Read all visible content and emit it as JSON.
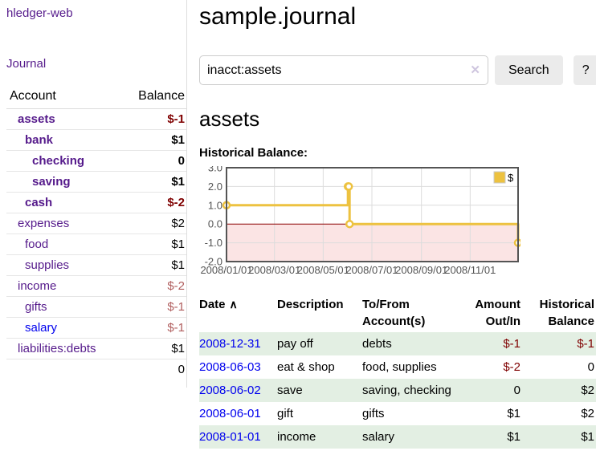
{
  "sidebar": {
    "app_title": "hledger-web",
    "journal_link": "Journal",
    "accounts_header": {
      "account": "Account",
      "balance": "Balance"
    },
    "accounts": [
      {
        "label": "assets",
        "depth": 0,
        "bold": true,
        "link_color": "purple",
        "balance": "$-1",
        "balance_style": "neg-strong"
      },
      {
        "label": "bank",
        "depth": 1,
        "bold": true,
        "link_color": "purple",
        "balance": "$1",
        "balance_style": "plain"
      },
      {
        "label": "checking",
        "depth": 2,
        "bold": true,
        "link_color": "purple",
        "balance": "0",
        "balance_style": "plain"
      },
      {
        "label": "saving",
        "depth": 2,
        "bold": true,
        "link_color": "purple",
        "balance": "$1",
        "balance_style": "plain"
      },
      {
        "label": "cash",
        "depth": 1,
        "bold": true,
        "link_color": "purple",
        "balance": "$-2",
        "balance_style": "neg-strong"
      },
      {
        "label": "expenses",
        "depth": 0,
        "bold": false,
        "link_color": "purple",
        "balance": "$2",
        "balance_style": "plain"
      },
      {
        "label": "food",
        "depth": 1,
        "bold": false,
        "link_color": "purple",
        "balance": "$1",
        "balance_style": "plain"
      },
      {
        "label": "supplies",
        "depth": 1,
        "bold": false,
        "link_color": "purple",
        "balance": "$1",
        "balance_style": "plain"
      },
      {
        "label": "income",
        "depth": 0,
        "bold": false,
        "link_color": "purple",
        "balance": "$-2",
        "balance_style": "neg-soft"
      },
      {
        "label": "gifts",
        "depth": 1,
        "bold": false,
        "link_color": "purple",
        "balance": "$-1",
        "balance_style": "neg-soft"
      },
      {
        "label": "salary",
        "depth": 1,
        "bold": false,
        "link_color": "blue",
        "balance": "$-1",
        "balance_style": "neg-soft"
      },
      {
        "label": "liabilities:debts",
        "depth": 0,
        "bold": false,
        "link_color": "purple",
        "balance": "$1",
        "balance_style": "plain"
      }
    ],
    "total": "0"
  },
  "main": {
    "title": "sample.journal",
    "search": {
      "value": "inacct:assets",
      "clear_icon": "✕",
      "button_label": "Search",
      "help_label": "?"
    },
    "account_heading": "assets",
    "chart_label": "Historical Balance:"
  },
  "register": {
    "headers": {
      "date": "Date",
      "sort_icon": "∧",
      "description": "Description",
      "accounts_line1": "To/From",
      "accounts_line2": "Account(s)",
      "amount_line1": "Amount",
      "amount_line2": "Out/In",
      "balance_line1": "Historical",
      "balance_line2": "Balance"
    },
    "rows": [
      {
        "date": "2008-12-31",
        "description": "pay off",
        "accounts": "debts",
        "amount": "$-1",
        "amount_negative": true,
        "balance": "$-1",
        "balance_negative": true
      },
      {
        "date": "2008-06-03",
        "description": "eat & shop",
        "accounts": "food, supplies",
        "amount": "$-2",
        "amount_negative": true,
        "balance": "0",
        "balance_negative": false
      },
      {
        "date": "2008-06-02",
        "description": "save",
        "accounts": "saving, checking",
        "amount": "0",
        "amount_negative": false,
        "balance": "$2",
        "balance_negative": false
      },
      {
        "date": "2008-06-01",
        "description": "gift",
        "accounts": "gifts",
        "amount": "$1",
        "amount_negative": false,
        "balance": "$2",
        "balance_negative": false
      },
      {
        "date": "2008-01-01",
        "description": "income",
        "accounts": "salary",
        "amount": "$1",
        "amount_negative": false,
        "balance": "$1",
        "balance_negative": false
      }
    ]
  },
  "chart_data": {
    "type": "line",
    "step": true,
    "title": "Historical Balance",
    "series": [
      {
        "name": "$",
        "color": "#edc240",
        "points": [
          [
            "2008-01-01",
            1
          ],
          [
            "2008-06-01",
            2
          ],
          [
            "2008-06-02",
            2
          ],
          [
            "2008-06-03",
            0
          ],
          [
            "2008-12-31",
            -1
          ]
        ]
      }
    ],
    "xlim": [
      "2008-01-01",
      "2008-12-31"
    ],
    "ylim": [
      -2,
      3
    ],
    "yticks": [
      3,
      2,
      1,
      0,
      -1,
      -2
    ],
    "xticks": [
      {
        "t": "2008-01-01",
        "label": "2008/01/01"
      },
      {
        "t": "2008-03-01",
        "label": "2008/03/01"
      },
      {
        "t": "2008-05-01",
        "label": "2008/05/01"
      },
      {
        "t": "2008-07-01",
        "label": "2008/07/01"
      },
      {
        "t": "2008-09-01",
        "label": "2008/09/01"
      },
      {
        "t": "2008-11-01",
        "label": "2008/11/01"
      }
    ],
    "grid": true,
    "legend_position": "top-right",
    "colors": {
      "negative_region": "#fbe4e4",
      "zero_line": "#8b0000",
      "grid_line": "#dcdcdc",
      "border": "#545454",
      "tick_text": "#545454",
      "marker_fill": "#ffffff"
    }
  }
}
